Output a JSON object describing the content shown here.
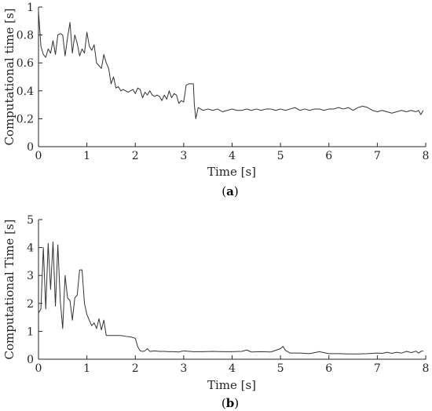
{
  "chart_data": [
    {
      "type": "line",
      "caption": "(a)",
      "caption_letter": "a",
      "xlabel": "Time [s]",
      "ylabel": "Computational time [s]",
      "xlim": [
        0,
        8
      ],
      "ylim": [
        0,
        1
      ],
      "xticks": [
        0,
        1,
        2,
        3,
        4,
        5,
        6,
        7,
        8
      ],
      "xtick_labels": [
        "0",
        "1",
        "2",
        "3",
        "4",
        "5",
        "6",
        "7",
        "8"
      ],
      "yticks": [
        0,
        0.2,
        0.4,
        0.6,
        0.8,
        1
      ],
      "ytick_labels": [
        "0",
        "0.2",
        "0.4",
        "0.6",
        "0.8",
        "1"
      ],
      "grid": false,
      "series": [
        {
          "x": [
            0,
            0.05,
            0.1,
            0.15,
            0.2,
            0.25,
            0.3,
            0.35,
            0.4,
            0.45,
            0.5,
            0.55,
            0.6,
            0.65,
            0.7,
            0.75,
            0.8,
            0.85,
            0.9,
            0.95,
            1.0,
            1.05,
            1.1,
            1.15,
            1.2,
            1.25,
            1.3,
            1.35,
            1.4,
            1.45,
            1.5,
            1.55,
            1.6,
            1.65,
            1.7,
            1.75,
            1.8,
            1.85,
            1.9,
            1.95,
            2.0,
            2.05,
            2.1,
            2.15,
            2.2,
            2.25,
            2.3,
            2.35,
            2.4,
            2.45,
            2.5,
            2.55,
            2.6,
            2.65,
            2.7,
            2.75,
            2.8,
            2.85,
            2.9,
            2.95,
            3.0,
            3.05,
            3.1,
            3.15,
            3.2,
            3.22,
            3.25,
            3.3,
            3.35,
            3.4,
            3.5,
            3.6,
            3.7,
            3.8,
            3.9,
            4.0,
            4.1,
            4.2,
            4.3,
            4.4,
            4.5,
            4.6,
            4.7,
            4.8,
            4.9,
            5.0,
            5.1,
            5.2,
            5.3,
            5.4,
            5.5,
            5.6,
            5.7,
            5.8,
            5.9,
            6.0,
            6.1,
            6.2,
            6.3,
            6.4,
            6.5,
            6.6,
            6.7,
            6.8,
            6.9,
            7.0,
            7.1,
            7.2,
            7.3,
            7.4,
            7.5,
            7.6,
            7.7,
            7.8,
            7.85,
            7.9,
            7.95
          ],
          "values": [
            0.97,
            0.72,
            0.66,
            0.64,
            0.7,
            0.67,
            0.76,
            0.66,
            0.8,
            0.81,
            0.8,
            0.65,
            0.78,
            0.89,
            0.67,
            0.8,
            0.74,
            0.65,
            0.7,
            0.67,
            0.82,
            0.72,
            0.69,
            0.73,
            0.6,
            0.58,
            0.56,
            0.66,
            0.6,
            0.56,
            0.45,
            0.5,
            0.42,
            0.43,
            0.4,
            0.41,
            0.4,
            0.39,
            0.4,
            0.41,
            0.38,
            0.42,
            0.41,
            0.35,
            0.39,
            0.37,
            0.4,
            0.37,
            0.36,
            0.37,
            0.36,
            0.33,
            0.37,
            0.34,
            0.4,
            0.35,
            0.38,
            0.37,
            0.31,
            0.33,
            0.32,
            0.44,
            0.45,
            0.45,
            0.45,
            0.3,
            0.2,
            0.28,
            0.27,
            0.26,
            0.27,
            0.26,
            0.27,
            0.25,
            0.26,
            0.27,
            0.26,
            0.26,
            0.27,
            0.26,
            0.27,
            0.26,
            0.27,
            0.27,
            0.26,
            0.27,
            0.26,
            0.27,
            0.28,
            0.26,
            0.27,
            0.26,
            0.27,
            0.27,
            0.26,
            0.27,
            0.27,
            0.28,
            0.27,
            0.28,
            0.26,
            0.28,
            0.29,
            0.28,
            0.26,
            0.25,
            0.26,
            0.25,
            0.24,
            0.25,
            0.26,
            0.25,
            0.26,
            0.25,
            0.26,
            0.23,
            0.26
          ]
        }
      ]
    },
    {
      "type": "line",
      "caption": "(b)",
      "caption_letter": "b",
      "xlabel": "Time [s]",
      "ylabel": "Computational Time [s]",
      "xlim": [
        0,
        8
      ],
      "ylim": [
        0,
        5
      ],
      "xticks": [
        0,
        1,
        2,
        3,
        4,
        5,
        6,
        7,
        8
      ],
      "xtick_labels": [
        "0",
        "1",
        "2",
        "3",
        "4",
        "5",
        "6",
        "7",
        "8"
      ],
      "yticks": [
        0,
        1,
        2,
        3,
        4,
        5
      ],
      "ytick_labels": [
        "0",
        "1",
        "2",
        "3",
        "4",
        "5"
      ],
      "grid": false,
      "series": [
        {
          "x": [
            0,
            0.05,
            0.1,
            0.15,
            0.2,
            0.25,
            0.3,
            0.35,
            0.4,
            0.45,
            0.5,
            0.55,
            0.6,
            0.65,
            0.7,
            0.75,
            0.8,
            0.85,
            0.9,
            0.95,
            1.0,
            1.05,
            1.1,
            1.15,
            1.2,
            1.25,
            1.3,
            1.35,
            1.4,
            1.45,
            1.5,
            1.6,
            1.7,
            1.8,
            1.9,
            2.0,
            2.05,
            2.1,
            2.15,
            2.2,
            2.25,
            2.3,
            2.4,
            2.5,
            2.6,
            2.7,
            2.8,
            2.9,
            3.0,
            3.2,
            3.4,
            3.6,
            3.8,
            4.0,
            4.2,
            4.3,
            4.4,
            4.6,
            4.8,
            5.0,
            5.05,
            5.1,
            5.2,
            5.4,
            5.6,
            5.8,
            6.0,
            6.2,
            6.4,
            6.6,
            6.8,
            7.0,
            7.1,
            7.2,
            7.3,
            7.4,
            7.5,
            7.6,
            7.7,
            7.8,
            7.85,
            7.9,
            7.95
          ],
          "values": [
            1.65,
            1.8,
            4.0,
            1.8,
            4.15,
            2.5,
            4.2,
            1.9,
            4.1,
            2.1,
            1.1,
            3.0,
            2.2,
            2.1,
            1.4,
            2.2,
            2.3,
            3.2,
            3.2,
            2.0,
            1.6,
            1.4,
            1.2,
            1.3,
            1.1,
            1.45,
            1.05,
            1.4,
            0.85,
            0.85,
            0.85,
            0.85,
            0.85,
            0.82,
            0.8,
            0.75,
            0.45,
            0.3,
            0.28,
            0.3,
            0.38,
            0.28,
            0.3,
            0.28,
            0.28,
            0.27,
            0.27,
            0.26,
            0.3,
            0.27,
            0.27,
            0.28,
            0.27,
            0.27,
            0.28,
            0.33,
            0.26,
            0.27,
            0.26,
            0.38,
            0.46,
            0.32,
            0.22,
            0.22,
            0.2,
            0.27,
            0.2,
            0.2,
            0.19,
            0.19,
            0.2,
            0.22,
            0.21,
            0.25,
            0.21,
            0.25,
            0.22,
            0.28,
            0.24,
            0.29,
            0.22,
            0.28,
            0.3
          ]
        }
      ]
    }
  ]
}
